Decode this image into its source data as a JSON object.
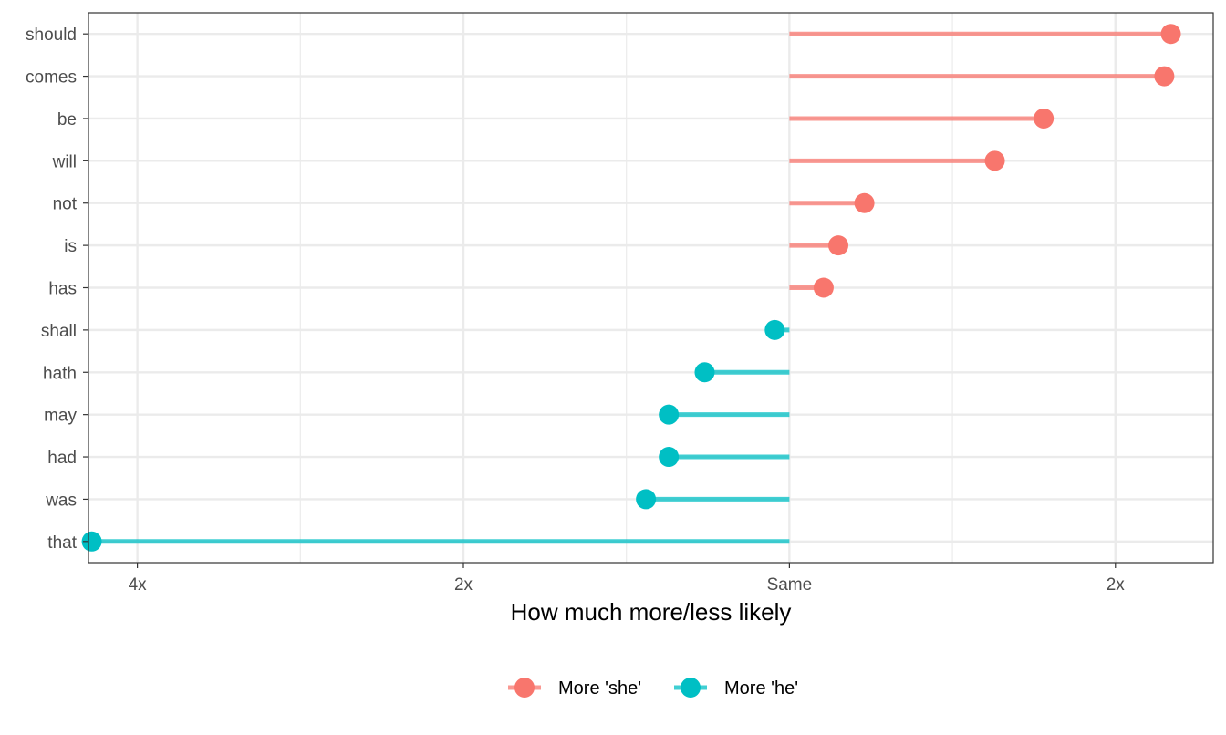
{
  "chart_data": {
    "type": "lollipop",
    "title": "",
    "xlabel": "How much more/less likely",
    "ylabel": "",
    "x_scale": "log2 ratio",
    "xlim": [
      -2.15,
      1.3
    ],
    "x_ticks": [
      {
        "value": -2,
        "label": "4x"
      },
      {
        "value": -1,
        "label": "2x"
      },
      {
        "value": 0,
        "label": "Same"
      },
      {
        "value": 1,
        "label": "2x"
      }
    ],
    "grid": true,
    "legend_position": "bottom",
    "categories": [
      "should",
      "comes",
      "be",
      "will",
      "not",
      "is",
      "has",
      "shall",
      "hath",
      "may",
      "had",
      "was",
      "that"
    ],
    "values": [
      1.17,
      1.15,
      0.78,
      0.63,
      0.23,
      0.15,
      0.105,
      -0.045,
      -0.26,
      -0.37,
      -0.37,
      -0.44,
      -2.14
    ],
    "series": [
      {
        "name": "More 'she'",
        "color": "#F8766D"
      },
      {
        "name": "More 'he'",
        "color": "#00BFC4"
      }
    ]
  }
}
